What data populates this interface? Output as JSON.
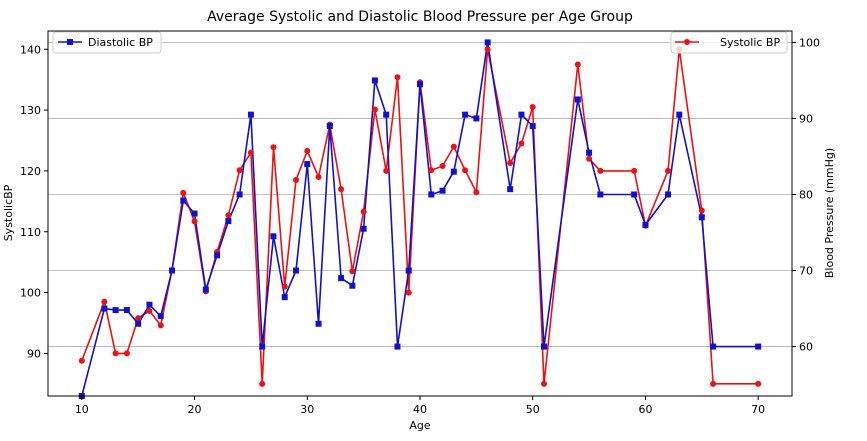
{
  "chart_data": {
    "type": "line",
    "title": "Average Systolic and Diastolic Blood Pressure per Age Group",
    "xlabel": "Age",
    "ylabel_left": "SystolicBP",
    "ylabel_right": "Blood Pressure (mmHg)",
    "xlim": [
      7,
      73
    ],
    "ylim_left": [
      83,
      143
    ],
    "ylim_right": [
      53.5,
      101.5
    ],
    "x_ticks": [
      10,
      20,
      30,
      40,
      50,
      60,
      70
    ],
    "y_ticks_left": [
      90,
      100,
      110,
      120,
      130,
      140
    ],
    "y_ticks_right": [
      60,
      70,
      80,
      90,
      100
    ],
    "grid": "horizontal lines on right axis",
    "series": [
      {
        "name": "Systolic BP",
        "axis": "left",
        "color": "#ee1111",
        "marker": "circle",
        "legend_position": "top-right",
        "x": [
          10,
          12,
          13,
          14,
          15,
          16,
          17,
          18,
          19,
          20,
          21,
          22,
          23,
          24,
          25,
          26,
          27,
          28,
          29,
          30,
          31,
          32,
          33,
          34,
          35,
          36,
          37,
          38,
          39,
          40,
          41,
          42,
          43,
          44,
          45,
          46,
          48,
          49,
          50,
          51,
          54,
          55,
          56,
          59,
          60,
          62,
          63,
          65,
          66,
          70
        ],
        "values": [
          88.8,
          98.5,
          90,
          90,
          95.8,
          97,
          94.6,
          103.7,
          116.4,
          111.7,
          100.2,
          106.7,
          112.7,
          120.1,
          123,
          85,
          123.9,
          101,
          118.5,
          123.3,
          119,
          127.6,
          117,
          103.5,
          113.3,
          130.1,
          120,
          135.4,
          100,
          134.6,
          120.1,
          120.8,
          124,
          120.1,
          116.5,
          140,
          121.3,
          124.5,
          130.5,
          85,
          137.5,
          122,
          120,
          120,
          111,
          120,
          140,
          113.5,
          85,
          85
        ]
      },
      {
        "name": "Diastolic BP",
        "axis": "right",
        "color": "#1111cc",
        "marker": "square",
        "legend_position": "top-left",
        "x": [
          10,
          12,
          13,
          14,
          15,
          16,
          17,
          18,
          19,
          20,
          21,
          22,
          23,
          24,
          25,
          26,
          27,
          28,
          29,
          30,
          31,
          32,
          33,
          34,
          35,
          36,
          37,
          38,
          39,
          40,
          41,
          42,
          43,
          44,
          45,
          46,
          48,
          49,
          50,
          51,
          54,
          55,
          56,
          59,
          60,
          62,
          63,
          65,
          66,
          70
        ],
        "values": [
          53.5,
          65,
          64.8,
          64.8,
          63,
          65.5,
          64,
          70,
          79.2,
          77.5,
          67.5,
          72,
          76.5,
          80,
          90.5,
          60,
          74.5,
          66.5,
          70,
          84,
          63,
          89,
          69,
          68,
          75.5,
          95,
          90.5,
          60,
          70,
          94.5,
          80,
          80.5,
          83,
          90.5,
          90,
          100,
          80.7,
          90.5,
          89,
          60,
          92.5,
          85.5,
          80,
          80,
          76,
          80,
          90.5,
          77,
          60,
          60
        ]
      }
    ]
  }
}
